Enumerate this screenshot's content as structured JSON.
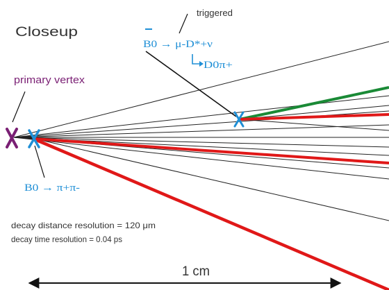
{
  "title": "Closeup",
  "annotations": {
    "triggered": "triggered",
    "primary_vertex": "primary vertex",
    "decay1_bar": "B",
    "decay1_rest": "0 → μ-D*+ν",
    "decay1_sub": "D0π+",
    "decay2": "B0 → π+π-",
    "resolution_distance": "decay distance resolution = 120 μm",
    "resolution_time": "decay time resolution = 0.04 ps",
    "scale_label": "1 cm"
  },
  "colors": {
    "text": "#333333",
    "primary_vertex": "#7a1f74",
    "b_decay": "#1f8fd6",
    "subdecay_mark": "#d0314a",
    "track": "#222222",
    "red_track": "#e01818",
    "green_track": "#1a8a36",
    "leader": "#111111"
  },
  "icons": {
    "primary_vertex_marker": "x-mark",
    "secondary_vertex_marker": "x-mark",
    "d_vertex_marker": "x-mark"
  }
}
